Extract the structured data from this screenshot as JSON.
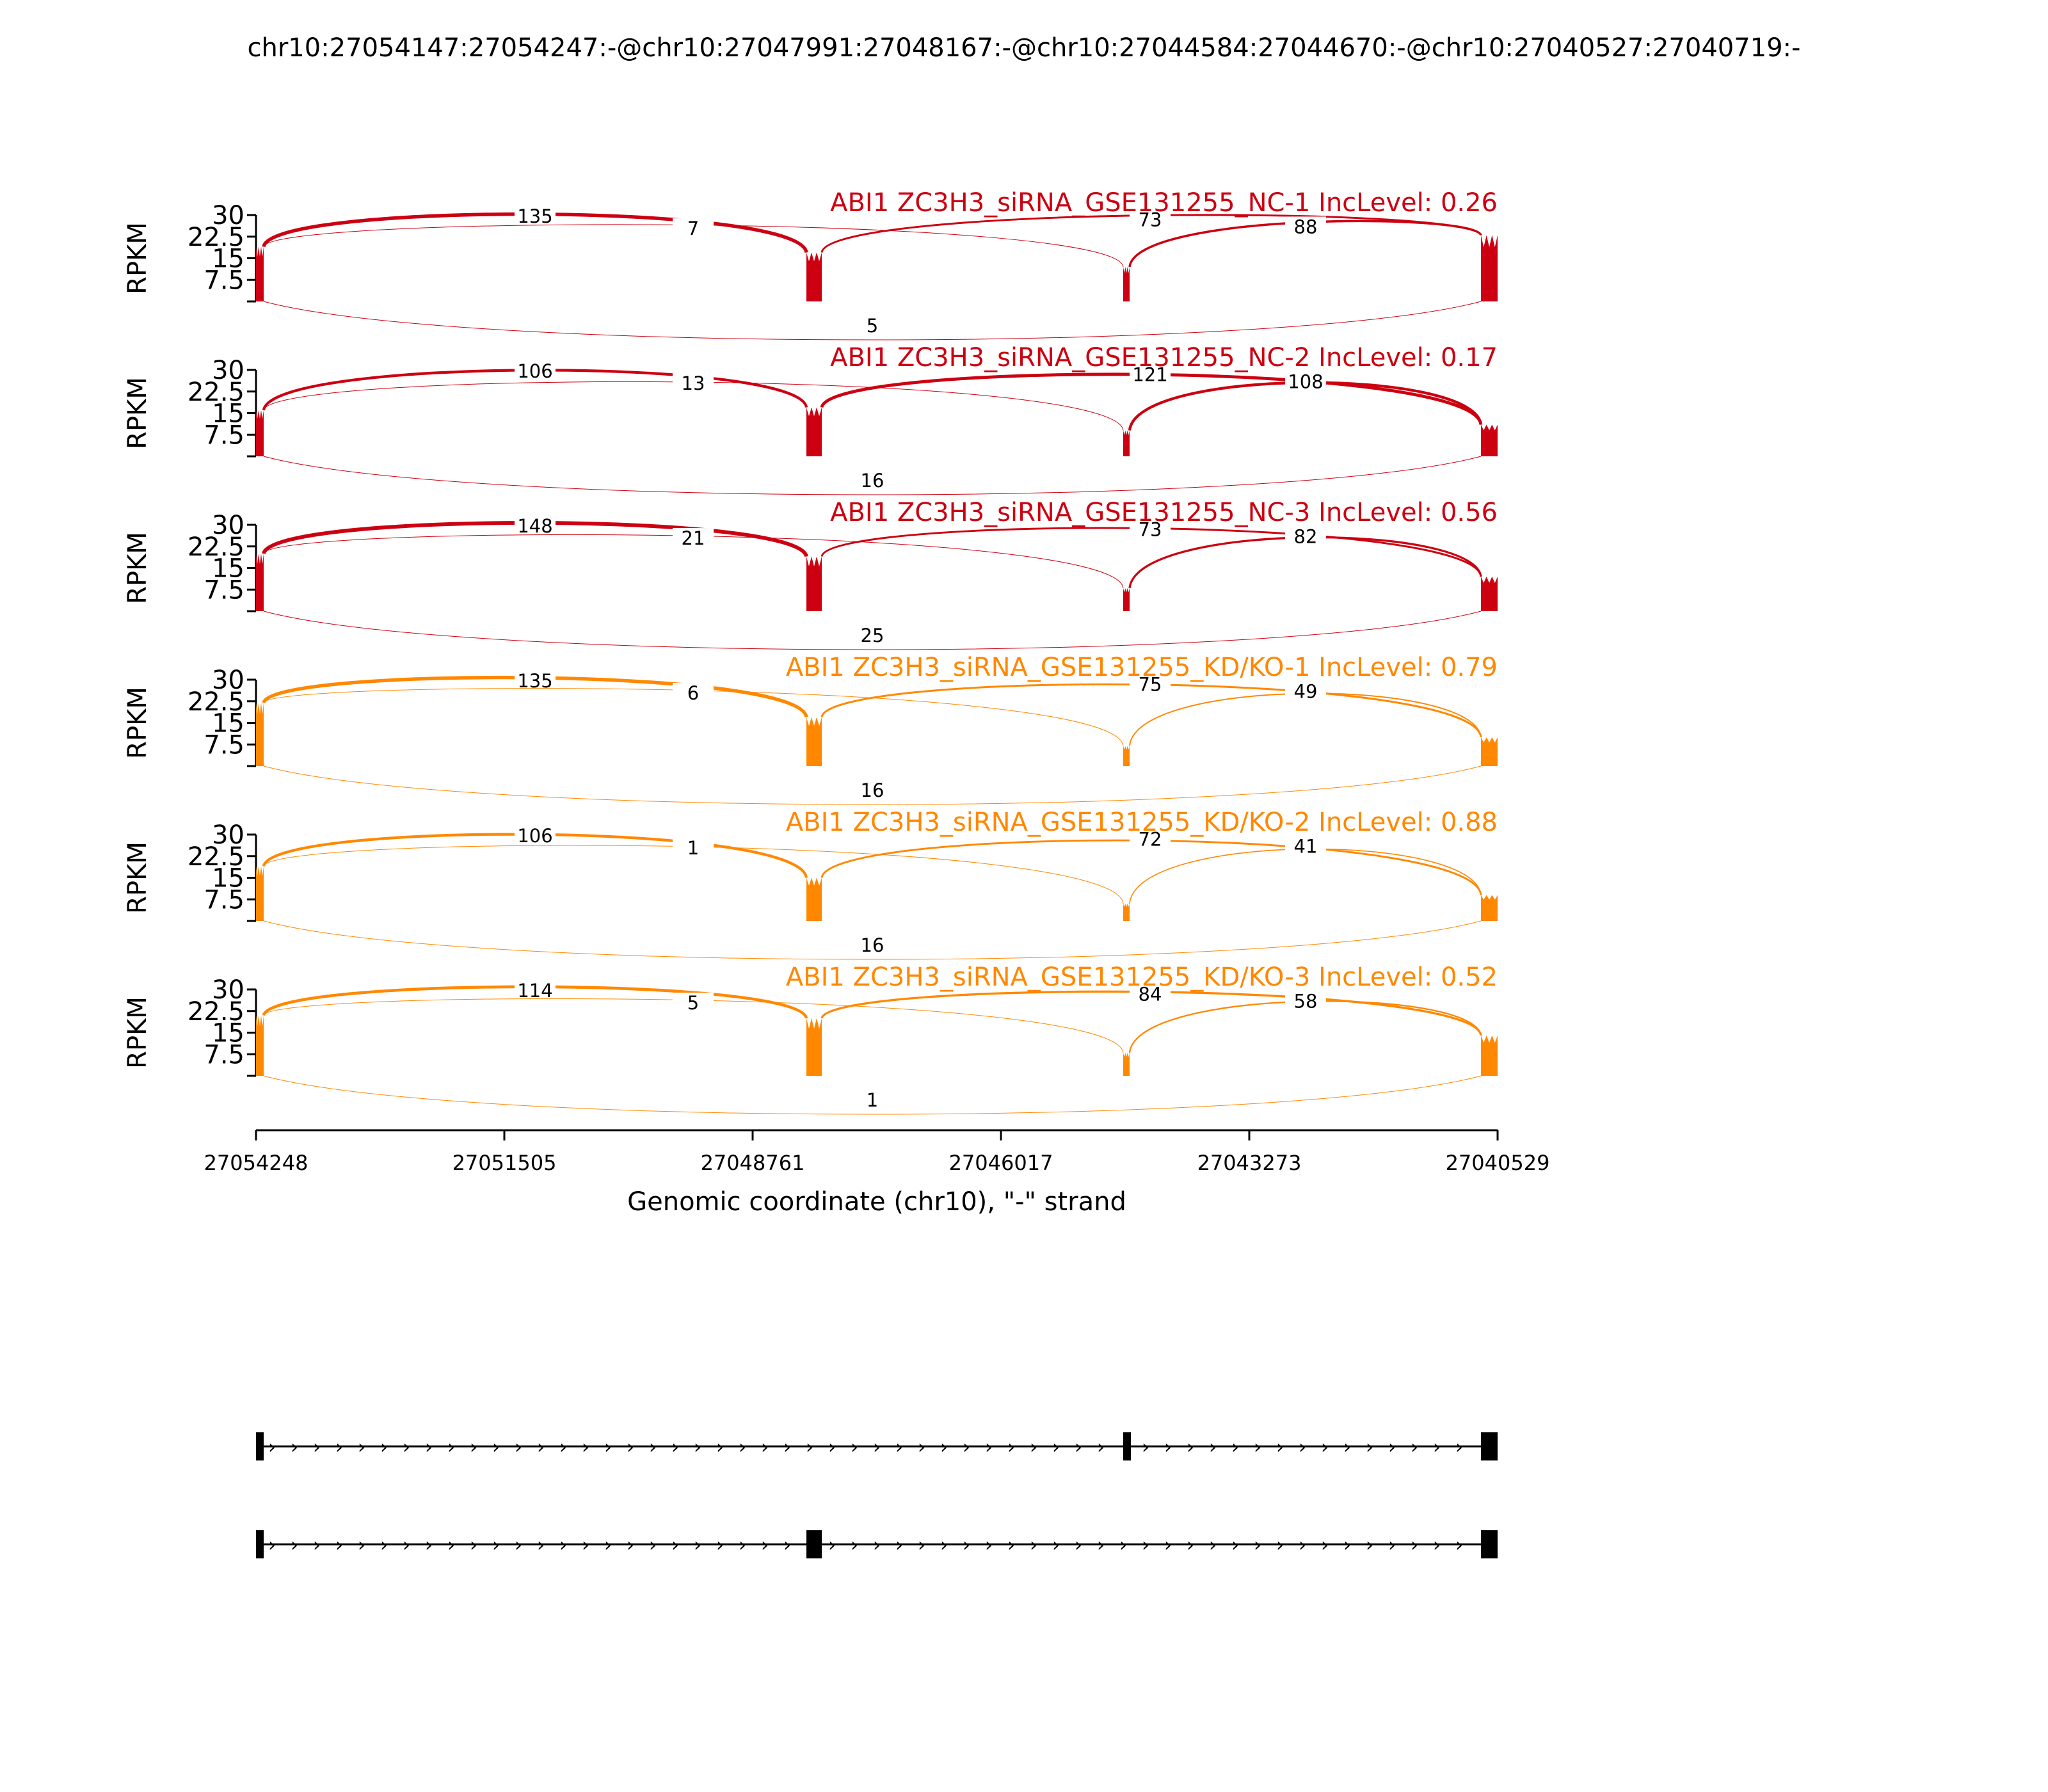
{
  "title": "chr10:27054147:27054247:-@chr10:27047991:27048167:-@chr10:27044584:27044670:-@chr10:27040527:27040719:-",
  "chart_data": {
    "type": "sashimi",
    "xlabel": "Genomic coordinate (chr10), \"-\" strand",
    "ylabel": "RPKM",
    "yticks": [
      "7.5",
      "15",
      "22.5",
      "30"
    ],
    "ylim": [
      0,
      30
    ],
    "xlim": [
      27054248,
      27040529
    ],
    "xticks": [
      "27054248",
      "27051505",
      "27048761",
      "27046017",
      "27043273",
      "27040529"
    ],
    "exons": [
      {
        "start": 27054248,
        "end": 27054147
      },
      {
        "start": 27048167,
        "end": 27047991
      },
      {
        "start": 27044670,
        "end": 27044584
      },
      {
        "start": 27040719,
        "end": 27040529
      }
    ],
    "junction_keys": [
      "e1_e2",
      "e1_e3",
      "e2_e4",
      "e3_e4",
      "e1_e4"
    ],
    "samples": [
      {
        "label": "ABI1 ZC3H3_siRNA_GSE131255_NC-1 IncLevel: 0.26",
        "color": "#CC0011",
        "counts": [
          "135",
          "7",
          "73",
          "88",
          "5"
        ],
        "coverage": [
          19,
          17,
          12,
          23
        ]
      },
      {
        "label": "ABI1 ZC3H3_siRNA_GSE131255_NC-2 IncLevel: 0.17",
        "color": "#CC0011",
        "counts": [
          "106",
          "13",
          "121",
          "108",
          "16"
        ],
        "coverage": [
          16,
          17,
          9,
          11
        ]
      },
      {
        "label": "ABI1 ZC3H3_siRNA_GSE131255_NC-3 IncLevel: 0.56",
        "color": "#CC0011",
        "counts": [
          "148",
          "21",
          "73",
          "82",
          "25"
        ],
        "coverage": [
          20,
          19,
          8,
          12
        ]
      },
      {
        "label": "ABI1 ZC3H3_siRNA_GSE131255_KD/KO-1 IncLevel: 0.79",
        "color": "#FF8800",
        "counts": [
          "135",
          "6",
          "75",
          "49",
          "16"
        ],
        "coverage": [
          22,
          17,
          7,
          10
        ]
      },
      {
        "label": "ABI1 ZC3H3_siRNA_GSE131255_KD/KO-2 IncLevel: 0.88",
        "color": "#FF8800",
        "counts": [
          "106",
          "1",
          "72",
          "41",
          "16"
        ],
        "coverage": [
          19,
          15,
          6,
          9
        ]
      },
      {
        "label": "ABI1 ZC3H3_siRNA_GSE131255_KD/KO-3 IncLevel: 0.52",
        "color": "#FF8800",
        "counts": [
          "114",
          "5",
          "84",
          "58",
          "1"
        ],
        "coverage": [
          21,
          20,
          8,
          14
        ]
      }
    ],
    "isoforms": [
      {
        "exons": [
          0,
          2,
          3
        ]
      },
      {
        "exons": [
          0,
          1,
          3
        ]
      }
    ]
  }
}
